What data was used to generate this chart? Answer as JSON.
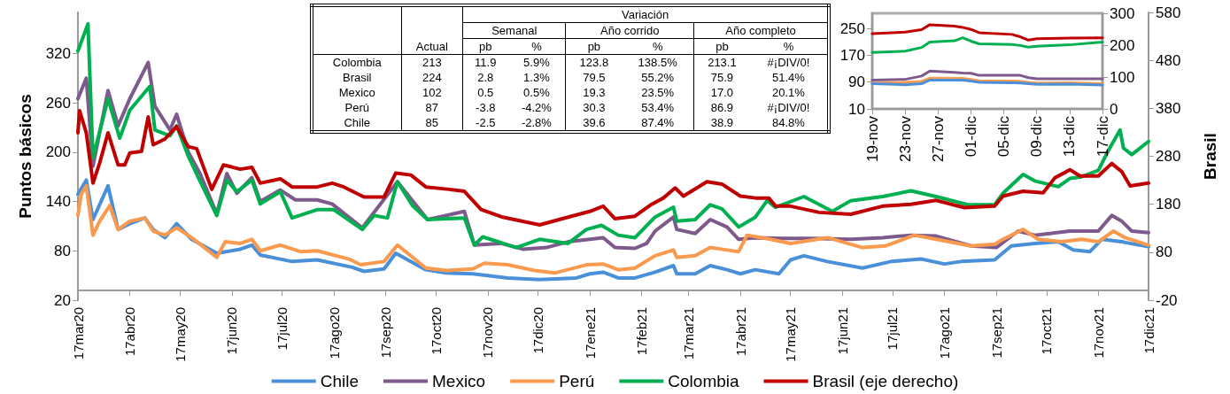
{
  "chart_data": [
    {
      "type": "line",
      "ylabel": "Puntos básicos",
      "y2label": "Brasil",
      "xlim": [
        "2020-03-17",
        "2021-12-17"
      ],
      "xticks": [
        {
          "value": "2020-03-17",
          "label": "17mar20"
        },
        {
          "value": "2020-04-17",
          "label": "17abr20"
        },
        {
          "value": "2020-05-17",
          "label": "17may20"
        },
        {
          "value": "2020-06-17",
          "label": "17jun20"
        },
        {
          "value": "2020-07-17",
          "label": "17jul20"
        },
        {
          "value": "2020-08-17",
          "label": "17ago20"
        },
        {
          "value": "2020-09-17",
          "label": "17sep20"
        },
        {
          "value": "2020-10-17",
          "label": "17oct20"
        },
        {
          "value": "2020-11-17",
          "label": "17nov20"
        },
        {
          "value": "2020-12-17",
          "label": "17dic20"
        },
        {
          "value": "2021-01-17",
          "label": "17ene21"
        },
        {
          "value": "2021-02-17",
          "label": "17feb21"
        },
        {
          "value": "2021-03-17",
          "label": "17mar21"
        },
        {
          "value": "2021-04-17",
          "label": "17abr21"
        },
        {
          "value": "2021-05-17",
          "label": "17may21"
        },
        {
          "value": "2021-06-17",
          "label": "17jun21"
        },
        {
          "value": "2021-07-17",
          "label": "17jul21"
        },
        {
          "value": "2021-08-17",
          "label": "17ago21"
        },
        {
          "value": "2021-09-17",
          "label": "17sep21"
        },
        {
          "value": "2021-10-17",
          "label": "17oct21"
        },
        {
          "value": "2021-11-17",
          "label": "17nov21"
        },
        {
          "value": "2021-12-17",
          "label": "17dic21"
        }
      ],
      "ylim": [
        20,
        370
      ],
      "yticks": [
        20,
        80,
        140,
        200,
        260,
        320
      ],
      "y2lim": [
        -20,
        580
      ],
      "y2ticks": [
        -20,
        80,
        180,
        280,
        380,
        480,
        580
      ],
      "grid": false,
      "legend": "bottom",
      "marker": "none",
      "line_style": "solid",
      "series": [
        {
          "name": "Chile",
          "color": "#4a90d9",
          "x": [
            "2020-03-17",
            "2020-03-22",
            "2020-03-26",
            "2020-04-04",
            "2020-04-10",
            "2020-04-17",
            "2020-04-26",
            "2020-05-01",
            "2020-05-08",
            "2020-05-15",
            "2020-05-24",
            "2020-06-08",
            "2020-06-22",
            "2020-06-29",
            "2020-07-04",
            "2020-07-23",
            "2020-08-07",
            "2020-08-28",
            "2020-09-04",
            "2020-09-16",
            "2020-09-23",
            "2020-10-11",
            "2020-10-23",
            "2020-11-08",
            "2020-11-29",
            "2020-12-18",
            "2021-01-09",
            "2021-01-17",
            "2021-01-25",
            "2021-02-03",
            "2021-02-13",
            "2021-02-25",
            "2021-03-08",
            "2021-03-10",
            "2021-03-21",
            "2021-03-30",
            "2021-04-09",
            "2021-04-17",
            "2021-04-26",
            "2021-05-10",
            "2021-05-17",
            "2021-05-25",
            "2021-06-08",
            "2021-06-29",
            "2021-07-16",
            "2021-08-03",
            "2021-08-17",
            "2021-08-27",
            "2021-09-16",
            "2021-09-26",
            "2021-10-10",
            "2021-10-24",
            "2021-11-02",
            "2021-11-12",
            "2021-11-19",
            "2021-12-01",
            "2021-12-17"
          ],
          "values": [
            149,
            166,
            118,
            159,
            106,
            113,
            120,
            106,
            96,
            113,
            94,
            77,
            82,
            87,
            75,
            67,
            69,
            60,
            55,
            58,
            77,
            57,
            53,
            52,
            47,
            45,
            47,
            52,
            54,
            47,
            47,
            54,
            62,
            52,
            52,
            62,
            57,
            52,
            57,
            52,
            69,
            74,
            67,
            59,
            67,
            70,
            64,
            67,
            69,
            86,
            89,
            91,
            81,
            79,
            94,
            91,
            85
          ]
        },
        {
          "name": "Mexico",
          "color": "#7e5a8c",
          "x": [
            "2020-03-17",
            "2020-03-22",
            "2020-03-26",
            "2020-04-04",
            "2020-04-10",
            "2020-04-17",
            "2020-04-28",
            "2020-05-02",
            "2020-05-11",
            "2020-05-15",
            "2020-05-22",
            "2020-05-29",
            "2020-06-08",
            "2020-06-14",
            "2020-06-20",
            "2020-06-29",
            "2020-07-04",
            "2020-07-16",
            "2020-07-25",
            "2020-08-07",
            "2020-08-16",
            "2020-09-03",
            "2020-09-24",
            "2020-10-12",
            "2020-11-03",
            "2020-11-09",
            "2020-11-25",
            "2020-12-08",
            "2020-12-22",
            "2021-01-04",
            "2021-01-17",
            "2021-01-25",
            "2021-02-01",
            "2021-02-13",
            "2021-02-20",
            "2021-02-25",
            "2021-03-08",
            "2021-03-10",
            "2021-03-21",
            "2021-03-30",
            "2021-04-09",
            "2021-04-16",
            "2021-04-26",
            "2021-05-12",
            "2021-05-29",
            "2021-06-22",
            "2021-07-11",
            "2021-07-28",
            "2021-08-12",
            "2021-09-02",
            "2021-09-17",
            "2021-09-30",
            "2021-10-10",
            "2021-10-31",
            "2021-11-17",
            "2021-11-25",
            "2021-12-01",
            "2021-12-07",
            "2021-12-17"
          ],
          "values": [
            265,
            290,
            183,
            275,
            232,
            265,
            309,
            256,
            227,
            246,
            200,
            174,
            125,
            174,
            150,
            169,
            140,
            154,
            142,
            142,
            137,
            108,
            164,
            118,
            128,
            87,
            89,
            82,
            84,
            91,
            94,
            96,
            84,
            83,
            89,
            104,
            121,
            106,
            101,
            118,
            109,
            94,
            96,
            95,
            95,
            94,
            96,
            99,
            98,
            86,
            84,
            104,
            99,
            104,
            104,
            123,
            116,
            104,
            102
          ]
        },
        {
          "name": "Perú",
          "color": "#fa9a4e",
          "x": [
            "2020-03-17",
            "2020-03-19",
            "2020-03-22",
            "2020-03-26",
            "2020-03-30",
            "2020-04-05",
            "2020-04-10",
            "2020-04-17",
            "2020-04-26",
            "2020-05-01",
            "2020-05-08",
            "2020-05-15",
            "2020-05-24",
            "2020-06-08",
            "2020-06-13",
            "2020-06-22",
            "2020-06-29",
            "2020-07-04",
            "2020-07-16",
            "2020-07-28",
            "2020-08-07",
            "2020-08-26",
            "2020-09-02",
            "2020-09-16",
            "2020-09-24",
            "2020-10-11",
            "2020-10-23",
            "2020-11-08",
            "2020-11-15",
            "2020-11-29",
            "2020-12-15",
            "2020-12-27",
            "2021-01-15",
            "2021-01-25",
            "2021-02-03",
            "2021-02-13",
            "2021-02-25",
            "2021-03-08",
            "2021-03-10",
            "2021-03-21",
            "2021-03-30",
            "2021-04-09",
            "2021-04-16",
            "2021-04-21",
            "2021-05-05",
            "2021-05-17",
            "2021-06-08",
            "2021-06-29",
            "2021-07-13",
            "2021-07-30",
            "2021-08-12",
            "2021-09-02",
            "2021-09-16",
            "2021-09-21",
            "2021-10-03",
            "2021-10-12",
            "2021-10-26",
            "2021-11-07",
            "2021-11-17",
            "2021-11-26",
            "2021-12-03",
            "2021-12-17"
          ],
          "values": [
            123,
            149,
            159,
            99,
            116,
            135,
            106,
            116,
            120,
            104,
            99,
            108,
            96,
            72,
            91,
            89,
            94,
            80,
            87,
            79,
            80,
            70,
            63,
            67,
            87,
            59,
            56,
            58,
            65,
            63,
            56,
            53,
            63,
            64,
            57,
            59,
            74,
            81,
            72,
            74,
            84,
            81,
            79,
            99,
            94,
            89,
            96,
            84,
            86,
            99,
            94,
            86,
            88,
            94,
            106,
            94,
            91,
            94,
            91,
            104,
            96,
            87
          ]
        },
        {
          "name": "Colombia",
          "color": "#00b050",
          "x": [
            "2020-03-17",
            "2020-03-23",
            "2020-03-26",
            "2020-04-04",
            "2020-04-11",
            "2020-04-17",
            "2020-04-29",
            "2020-05-02",
            "2020-05-11",
            "2020-05-15",
            "2020-05-22",
            "2020-05-28",
            "2020-06-08",
            "2020-06-14",
            "2020-06-20",
            "2020-06-29",
            "2020-07-04",
            "2020-07-16",
            "2020-07-23",
            "2020-08-07",
            "2020-08-17",
            "2020-09-03",
            "2020-09-10",
            "2020-09-18",
            "2020-09-24",
            "2020-10-03",
            "2020-10-12",
            "2020-11-03",
            "2020-11-09",
            "2020-11-14",
            "2020-12-04",
            "2020-12-18",
            "2021-01-04",
            "2021-01-15",
            "2021-01-24",
            "2021-02-03",
            "2021-02-13",
            "2021-02-25",
            "2021-03-08",
            "2021-03-10",
            "2021-03-21",
            "2021-03-30",
            "2021-04-06",
            "2021-04-16",
            "2021-04-26",
            "2021-05-03",
            "2021-05-08",
            "2021-05-25",
            "2021-06-11",
            "2021-06-22",
            "2021-07-11",
            "2021-07-28",
            "2021-08-12",
            "2021-08-31",
            "2021-09-16",
            "2021-09-21",
            "2021-10-03",
            "2021-10-10",
            "2021-10-24",
            "2021-10-31",
            "2021-11-07",
            "2021-11-17",
            "2021-11-23",
            "2021-11-30",
            "2021-12-02",
            "2021-12-07",
            "2021-12-17"
          ],
          "values": [
            323,
            356,
            193,
            265,
            217,
            251,
            280,
            227,
            220,
            232,
            195,
            169,
            123,
            166,
            152,
            166,
            137,
            152,
            120,
            130,
            130,
            106,
            123,
            120,
            164,
            135,
            118,
            120,
            87,
            97,
            84,
            94,
            89,
            106,
            111,
            99,
            96,
            121,
            133,
            116,
            118,
            136,
            131,
            109,
            121,
            141,
            133,
            146,
            128,
            141,
            146,
            153,
            146,
            136,
            136,
            150,
            173,
            165,
            158,
            168,
            170,
            178,
            202,
            227,
            205,
            197,
            213
          ]
        },
        {
          "name": "Brasil (eje derecho)",
          "color": "#c00000",
          "axis": "y2",
          "x": [
            "2020-03-17",
            "2020-03-18",
            "2020-03-22",
            "2020-03-26",
            "2020-03-30",
            "2020-04-04",
            "2020-04-10",
            "2020-04-14",
            "2020-04-17",
            "2020-04-24",
            "2020-04-28",
            "2020-05-01",
            "2020-05-08",
            "2020-05-15",
            "2020-05-22",
            "2020-05-27",
            "2020-06-05",
            "2020-06-12",
            "2020-06-22",
            "2020-06-29",
            "2020-07-04",
            "2020-07-16",
            "2020-07-23",
            "2020-08-07",
            "2020-08-16",
            "2020-08-23",
            "2020-09-04",
            "2020-09-16",
            "2020-09-23",
            "2020-10-02",
            "2020-10-11",
            "2020-10-25",
            "2020-11-03",
            "2020-11-13",
            "2020-11-26",
            "2020-12-18",
            "2021-01-04",
            "2021-01-17",
            "2021-01-25",
            "2021-02-01",
            "2021-02-13",
            "2021-02-23",
            "2021-03-02",
            "2021-03-09",
            "2021-03-14",
            "2021-03-28",
            "2021-04-06",
            "2021-04-17",
            "2021-04-26",
            "2021-05-04",
            "2021-05-08",
            "2021-05-17",
            "2021-06-03",
            "2021-06-22",
            "2021-07-11",
            "2021-07-28",
            "2021-08-12",
            "2021-08-29",
            "2021-09-16",
            "2021-09-21",
            "2021-10-03",
            "2021-10-15",
            "2021-10-22",
            "2021-10-31",
            "2021-11-06",
            "2021-11-17",
            "2021-11-25",
            "2021-12-01",
            "2021-12-06",
            "2021-12-17"
          ],
          "values": [
            329,
            375,
            329,
            224,
            266,
            329,
            262,
            262,
            287,
            290,
            362,
            304,
            316,
            342,
            300,
            296,
            211,
            262,
            253,
            257,
            224,
            233,
            216,
            216,
            224,
            216,
            195,
            195,
            245,
            241,
            216,
            211,
            207,
            169,
            153,
            137,
            153,
            165,
            176,
            150,
            155,
            180,
            193,
            214,
            197,
            227,
            222,
            197,
            193,
            193,
            176,
            176,
            163,
            159,
            176,
            180,
            188,
            173,
            176,
            197,
            207,
            204,
            235,
            252,
            239,
            239,
            265,
            248,
            218,
            224
          ]
        }
      ]
    },
    {
      "type": "other",
      "categories": [
        "Colombia",
        "Brasil",
        "Mexico",
        "Perú",
        "Chile"
      ],
      "annotations": [
        "Variación",
        "Semanal",
        "Año corrido",
        "Año completo"
      ],
      "series": [
        {
          "name": "Actual",
          "values": [
            213,
            224,
            102,
            87,
            85
          ],
          "value_labels": [
            "213",
            "224",
            "102",
            "87",
            "85"
          ]
        },
        {
          "name": "pb",
          "values": [
            11.9,
            2.8,
            0.5,
            -3.8,
            -2.5
          ],
          "value_labels": [
            "11.9",
            "2.8",
            "0.5",
            "-3.8",
            "-2.5"
          ]
        },
        {
          "name": "%",
          "values": [
            5.9,
            1.3,
            0.5,
            -4.2,
            -2.8
          ],
          "value_labels": [
            "5.9%",
            "1.3%",
            "0.5%",
            "-4.2%",
            "-2.8%"
          ]
        },
        {
          "name": "pb",
          "values": [
            123.8,
            79.5,
            19.3,
            30.3,
            39.6
          ],
          "value_labels": [
            "123.8",
            "79.5",
            "19.3",
            "30.3",
            "39.6"
          ]
        },
        {
          "name": "%",
          "values": [
            138.5,
            55.2,
            23.5,
            53.4,
            87.4
          ],
          "value_labels": [
            "138.5%",
            "55.2%",
            "23.5%",
            "53.4%",
            "87.4%"
          ]
        },
        {
          "name": "pb",
          "values": [
            213.1,
            75.9,
            17.0,
            86.9,
            38.9
          ],
          "value_labels": [
            "213.1",
            "75.9",
            "17.0",
            "86.9",
            "38.9"
          ]
        },
        {
          "name": "%",
          "values": [
            null,
            51.4,
            20.1,
            null,
            84.8
          ],
          "value_labels": [
            "#¡DIV/0!",
            "51.4%",
            "20.1%",
            "#¡DIV/0!",
            "84.8%"
          ]
        }
      ]
    },
    {
      "type": "line",
      "x": [
        "--11-19",
        "--11-23",
        "--11-25",
        "--11-26",
        "--11-29",
        "--11-30",
        "--12-01",
        "--12-02",
        "--12-06",
        "--12-07",
        "--12-08",
        "--12-09",
        "--12-13",
        "--12-17"
      ],
      "xlim": [
        "--11-19",
        "--12-17"
      ],
      "xticks": [
        {
          "value": "--11-19",
          "label": "19-nov"
        },
        {
          "value": "--11-23",
          "label": "23-nov"
        },
        {
          "value": "--11-27",
          "label": "27-nov"
        },
        {
          "value": "--12-01",
          "label": "01-dic"
        },
        {
          "value": "--12-05",
          "label": "05-dic"
        },
        {
          "value": "--12-09",
          "label": "09-dic"
        },
        {
          "value": "--12-13",
          "label": "13-dic"
        },
        {
          "value": "--12-17",
          "label": "17-dic"
        }
      ],
      "ylim": [
        10,
        295
      ],
      "yticks": [
        10,
        90,
        170,
        250
      ],
      "y2lim": [
        0,
        300
      ],
      "y2ticks": [
        0,
        100,
        200,
        300
      ],
      "grid": false,
      "legend": false,
      "marker": "none",
      "line_style": "solid",
      "series": [
        {
          "color": "#c00000",
          "values": [
            234,
            239,
            246,
            261,
            257,
            253,
            247,
            237,
            232,
            225,
            215,
            219,
            221,
            222
          ]
        },
        {
          "color": "#00b050",
          "values": [
            178,
            182,
            193,
            209,
            213,
            222,
            212,
            204,
            202,
            199,
            194,
            197,
            201,
            209
          ]
        },
        {
          "color": "#7e5a8c",
          "values": [
            96,
            98,
            108,
            123,
            119,
            117,
            116,
            110,
            110,
            110,
            103,
            100,
            100,
            100
          ]
        },
        {
          "color": "#fa9a4e",
          "values": [
            87,
            89,
            92,
            102,
            101,
            101,
            98,
            94,
            93,
            92,
            89,
            87,
            88,
            85
          ]
        },
        {
          "color": "#4a90d9",
          "values": [
            85,
            82,
            85,
            96,
            96,
            96,
            93,
            89,
            88,
            87,
            85,
            83,
            84,
            81
          ]
        }
      ]
    }
  ]
}
